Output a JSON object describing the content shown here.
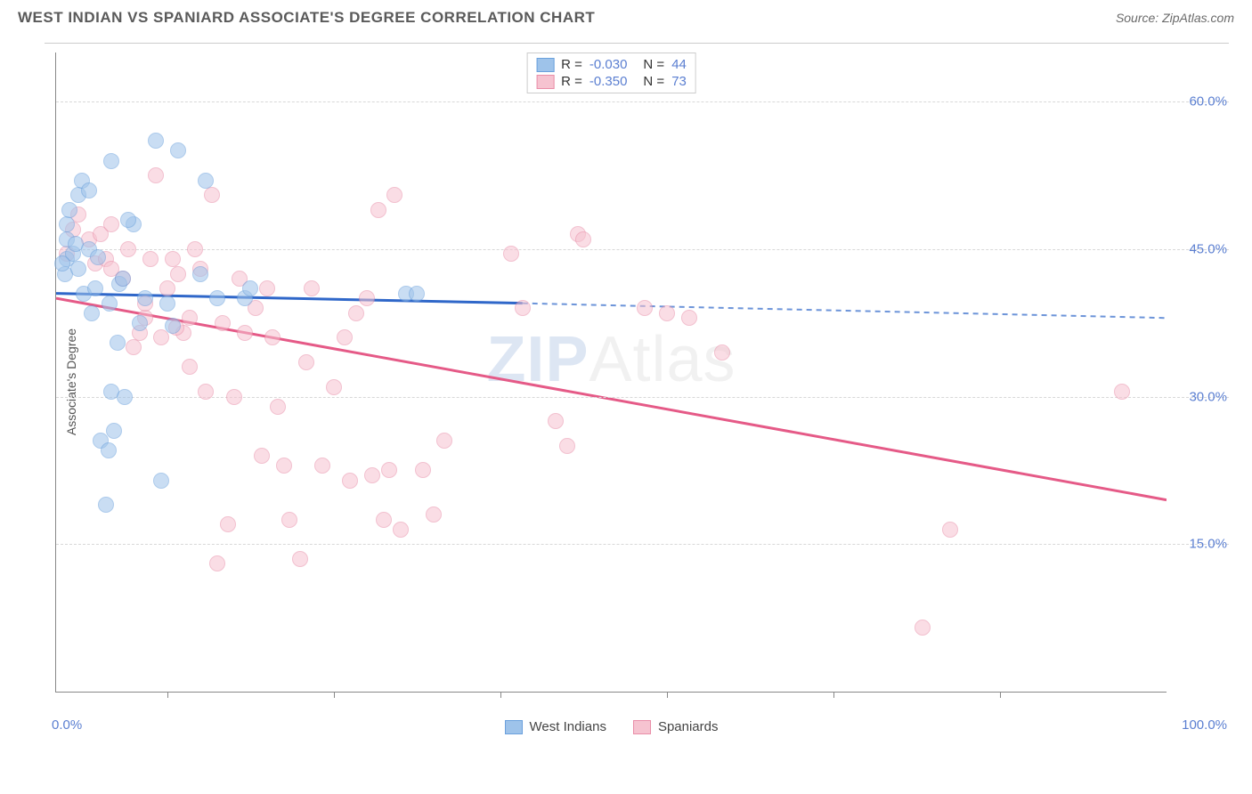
{
  "title": "WEST INDIAN VS SPANIARD ASSOCIATE'S DEGREE CORRELATION CHART",
  "source": "Source: ZipAtlas.com",
  "watermark_bold": "ZIP",
  "watermark_thin": "Atlas",
  "chart": {
    "type": "scatter",
    "xlim": [
      0,
      100
    ],
    "ylim": [
      0,
      65
    ],
    "xaxis_left": "0.0%",
    "xaxis_right": "100.0%",
    "yaxis_title": "Associate's Degree",
    "yticks": [
      {
        "v": 15,
        "label": "15.0%"
      },
      {
        "v": 30,
        "label": "30.0%"
      },
      {
        "v": 45,
        "label": "45.0%"
      },
      {
        "v": 60,
        "label": "60.0%"
      }
    ],
    "xticks": [
      10,
      25,
      40,
      55,
      70,
      85
    ],
    "grid_color": "#d8d8d8",
    "background_color": "#ffffff",
    "label_color": "#5b7fd1",
    "marker_radius": 9,
    "marker_opacity": 0.55,
    "line_width": 3,
    "title_color": "#5a5a5a",
    "title_fontsize": 17,
    "tick_fontsize": 15
  },
  "series": [
    {
      "key": "west_indians",
      "label": "West Indians",
      "fill": "#9ec3ea",
      "stroke": "#6aa0dc",
      "line_color": "#2f67c9",
      "R": "-0.030",
      "N": "44",
      "regression": {
        "x1": 0,
        "y1": 40.5,
        "x2_solid": 42,
        "y2_solid": 39.5,
        "x2": 100,
        "y2": 38.0
      },
      "points": [
        [
          1,
          46
        ],
        [
          1,
          47.5
        ],
        [
          1.2,
          49
        ],
        [
          1,
          44
        ],
        [
          1.5,
          44.5
        ],
        [
          1.8,
          45.5
        ],
        [
          0.8,
          42.5
        ],
        [
          0.6,
          43.5
        ],
        [
          2,
          50.5
        ],
        [
          2.3,
          52
        ],
        [
          2,
          43
        ],
        [
          2.5,
          40.5
        ],
        [
          3,
          45
        ],
        [
          3,
          51
        ],
        [
          3.5,
          41
        ],
        [
          3.2,
          38.5
        ],
        [
          3.8,
          44.2
        ],
        [
          4,
          25.5
        ],
        [
          4.5,
          19
        ],
        [
          4.7,
          24.5
        ],
        [
          4.8,
          39.5
        ],
        [
          5,
          54
        ],
        [
          5,
          30.5
        ],
        [
          5.5,
          35.5
        ],
        [
          5.7,
          41.5
        ],
        [
          6,
          42
        ],
        [
          6.2,
          30
        ],
        [
          7,
          47.5
        ],
        [
          7.5,
          37.5
        ],
        [
          8,
          40
        ],
        [
          9,
          56
        ],
        [
          10,
          39.5
        ],
        [
          10.5,
          37.2
        ],
        [
          9.5,
          21.5
        ],
        [
          11,
          55
        ],
        [
          13,
          42.5
        ],
        [
          13.5,
          52
        ],
        [
          14.5,
          40
        ],
        [
          17,
          40
        ],
        [
          17.5,
          41
        ],
        [
          31.5,
          40.5
        ],
        [
          32.5,
          40.5
        ],
        [
          6.5,
          48
        ],
        [
          5.2,
          26.5
        ]
      ]
    },
    {
      "key": "spaniards",
      "label": "Spaniards",
      "fill": "#f6c3d0",
      "stroke": "#e98ea8",
      "line_color": "#e55a87",
      "R": "-0.350",
      "N": "73",
      "regression": {
        "x1": 0,
        "y1": 40,
        "x2_solid": 100,
        "y2_solid": 19.5,
        "x2": 100,
        "y2": 19.5
      },
      "points": [
        [
          1,
          44.5
        ],
        [
          1.5,
          47
        ],
        [
          2,
          48.5
        ],
        [
          3,
          46
        ],
        [
          3.5,
          43.5
        ],
        [
          4,
          46.5
        ],
        [
          4.5,
          44
        ],
        [
          5,
          43
        ],
        [
          5,
          47.5
        ],
        [
          6,
          42
        ],
        [
          6.5,
          45
        ],
        [
          7,
          35
        ],
        [
          7.5,
          36.5
        ],
        [
          8,
          38
        ],
        [
          8.5,
          44
        ],
        [
          9,
          52.5
        ],
        [
          9.5,
          36
        ],
        [
          10,
          41
        ],
        [
          10.5,
          44
        ],
        [
          11,
          42.5
        ],
        [
          11.5,
          36.5
        ],
        [
          12,
          33
        ],
        [
          12.5,
          45
        ],
        [
          13,
          43
        ],
        [
          13.5,
          30.5
        ],
        [
          14,
          50.5
        ],
        [
          14.5,
          13
        ],
        [
          15,
          37.5
        ],
        [
          15.5,
          17
        ],
        [
          16,
          30
        ],
        [
          16.5,
          42
        ],
        [
          17,
          36.5
        ],
        [
          18,
          39
        ],
        [
          19,
          41
        ],
        [
          19.5,
          36
        ],
        [
          20,
          29
        ],
        [
          20.5,
          23
        ],
        [
          21,
          17.5
        ],
        [
          22,
          13.5
        ],
        [
          22.5,
          33.5
        ],
        [
          23,
          41
        ],
        [
          24,
          23
        ],
        [
          25,
          31
        ],
        [
          26,
          36
        ],
        [
          26.5,
          21.5
        ],
        [
          27,
          38.5
        ],
        [
          28,
          40
        ],
        [
          28.5,
          22
        ],
        [
          29,
          49
        ],
        [
          29.5,
          17.5
        ],
        [
          30,
          22.5
        ],
        [
          30.5,
          50.5
        ],
        [
          31,
          16.5
        ],
        [
          33,
          22.5
        ],
        [
          34,
          18
        ],
        [
          35,
          25.5
        ],
        [
          41,
          44.5
        ],
        [
          42,
          39
        ],
        [
          45,
          27.5
        ],
        [
          46,
          25
        ],
        [
          47,
          46.5
        ],
        [
          47.5,
          46
        ],
        [
          53,
          39
        ],
        [
          55,
          38.5
        ],
        [
          57,
          38
        ],
        [
          60,
          34.5
        ],
        [
          80.5,
          16.5
        ],
        [
          78,
          6.5
        ],
        [
          96,
          30.5
        ],
        [
          8,
          39.5
        ],
        [
          12,
          38
        ],
        [
          18.5,
          24
        ],
        [
          10.8,
          37
        ]
      ]
    }
  ]
}
